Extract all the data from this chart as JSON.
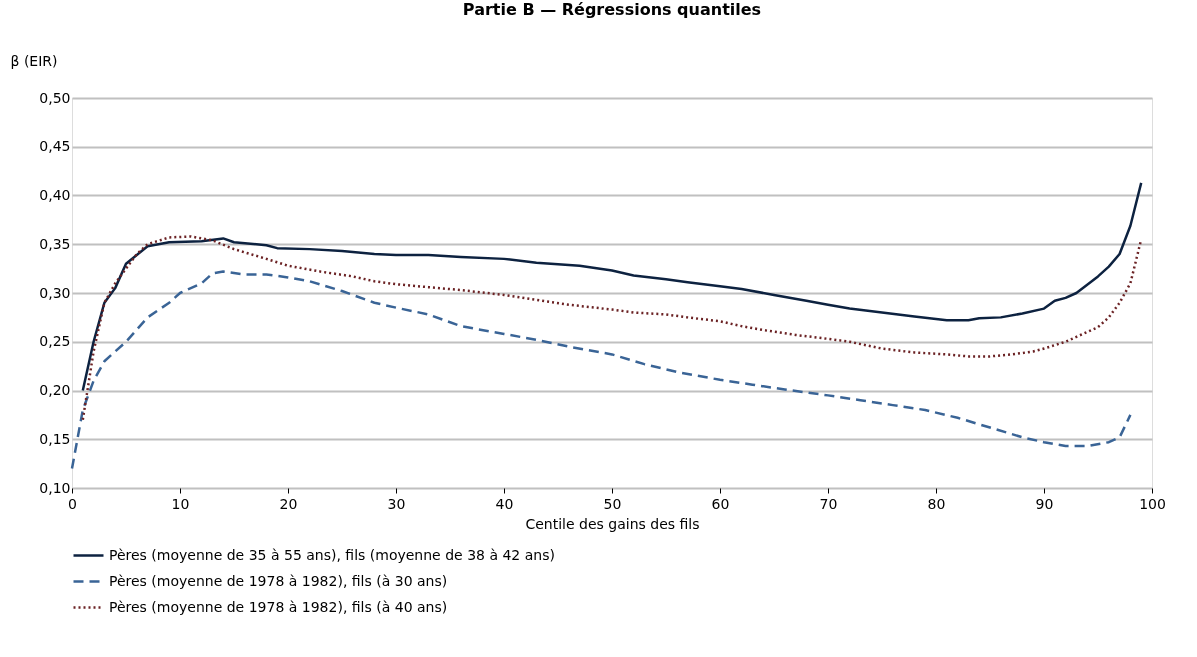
{
  "chart_data": {
    "type": "line",
    "title": "Partie B — Régressions quantiles",
    "xlabel": "Centile des gains des fils",
    "ylabel": "β (EIR)",
    "xlim": [
      0,
      100
    ],
    "xticks": [
      0,
      10,
      20,
      30,
      40,
      50,
      60,
      70,
      80,
      90,
      100
    ],
    "ylim": [
      0.1,
      0.5
    ],
    "yticks": [
      {
        "value": 0.1,
        "label": "0,10"
      },
      {
        "value": 0.15,
        "label": "0,15"
      },
      {
        "value": 0.2,
        "label": "0,20"
      },
      {
        "value": 0.25,
        "label": "0,25"
      },
      {
        "value": 0.3,
        "label": "0,30"
      },
      {
        "value": 0.35,
        "label": "0,35"
      },
      {
        "value": 0.4,
        "label": "0,40"
      },
      {
        "value": 0.45,
        "label": "0,45"
      },
      {
        "value": 0.5,
        "label": "0,50"
      }
    ],
    "grid": "y",
    "legend": "bottom",
    "series": [
      {
        "name": "Pères (moyenne de 35 à 55 ans), fils (moyenne de 38 à 42 ans)",
        "color": "#0d2240",
        "line_style": "solid",
        "x": [
          1,
          2,
          3,
          4,
          5,
          7,
          9,
          12,
          14,
          15,
          18,
          19,
          22,
          25,
          28,
          30,
          33,
          36,
          40,
          43,
          47,
          50,
          52,
          55,
          57,
          60,
          62,
          65,
          68,
          70,
          72,
          75,
          78,
          81,
          83,
          84,
          86,
          88,
          90,
          91,
          92,
          93,
          95,
          96,
          97,
          98,
          99
        ],
        "values": [
          0.2,
          0.25,
          0.29,
          0.305,
          0.33,
          0.348,
          0.352,
          0.353,
          0.356,
          0.352,
          0.349,
          0.346,
          0.345,
          0.343,
          0.34,
          0.339,
          0.339,
          0.337,
          0.335,
          0.331,
          0.328,
          0.323,
          0.318,
          0.314,
          0.311,
          0.307,
          0.304,
          0.298,
          0.292,
          0.288,
          0.284,
          0.28,
          0.276,
          0.272,
          0.272,
          0.274,
          0.275,
          0.279,
          0.284,
          0.292,
          0.295,
          0.3,
          0.317,
          0.327,
          0.34,
          0.369,
          0.413
        ]
      },
      {
        "name": "Pères (moyenne de 1978 à 1982), fils (à 30 ans)",
        "color": "#3a6496",
        "line_style": "dashed",
        "x": [
          0,
          1,
          2,
          3,
          5,
          7,
          9,
          10,
          12,
          13,
          14,
          16,
          18,
          20,
          22,
          25,
          28,
          30,
          33,
          36,
          40,
          43,
          46,
          50,
          53,
          56,
          60,
          63,
          66,
          70,
          73,
          76,
          79,
          82,
          85,
          88,
          90,
          92,
          94,
          96,
          97,
          98
        ],
        "values": [
          0.12,
          0.18,
          0.21,
          0.23,
          0.25,
          0.275,
          0.29,
          0.3,
          0.31,
          0.32,
          0.322,
          0.319,
          0.319,
          0.316,
          0.312,
          0.302,
          0.29,
          0.285,
          0.278,
          0.266,
          0.258,
          0.252,
          0.245,
          0.237,
          0.227,
          0.219,
          0.211,
          0.206,
          0.201,
          0.195,
          0.19,
          0.185,
          0.18,
          0.172,
          0.162,
          0.152,
          0.147,
          0.143,
          0.143,
          0.147,
          0.152,
          0.175
        ]
      },
      {
        "name": "Pères (moyenne de 1978 à 1982), fils (à 40 ans)",
        "color": "#6b2224",
        "line_style": "dotted",
        "x": [
          1,
          2,
          3,
          4,
          5,
          6,
          7,
          9,
          11,
          13,
          15,
          18,
          20,
          23,
          26,
          28,
          30,
          33,
          36,
          40,
          43,
          46,
          50,
          52,
          55,
          57,
          60,
          62,
          64,
          67,
          70,
          72,
          75,
          78,
          81,
          83,
          85,
          87,
          89,
          90,
          92,
          93,
          95,
          96,
          97,
          98,
          99
        ],
        "values": [
          0.17,
          0.24,
          0.29,
          0.31,
          0.325,
          0.34,
          0.35,
          0.357,
          0.358,
          0.354,
          0.345,
          0.335,
          0.328,
          0.322,
          0.317,
          0.312,
          0.309,
          0.306,
          0.303,
          0.298,
          0.293,
          0.288,
          0.283,
          0.28,
          0.278,
          0.275,
          0.271,
          0.266,
          0.262,
          0.257,
          0.253,
          0.25,
          0.243,
          0.239,
          0.237,
          0.235,
          0.235,
          0.237,
          0.24,
          0.243,
          0.25,
          0.255,
          0.265,
          0.275,
          0.29,
          0.31,
          0.355
        ]
      }
    ]
  }
}
